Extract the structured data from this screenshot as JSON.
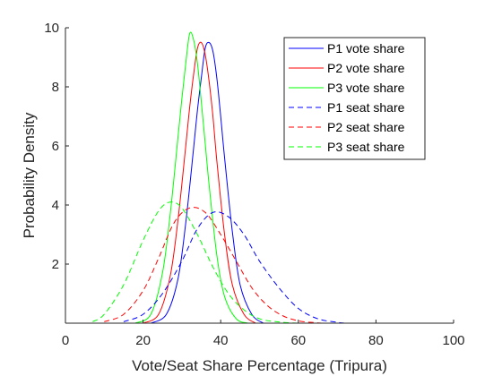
{
  "chart_data": {
    "type": "line",
    "xlabel": "Vote/Seat Share Percentage (Tripura)",
    "ylabel": "Probability Density",
    "xlim": [
      0,
      100
    ],
    "ylim": [
      0,
      10
    ],
    "x_ticks": [
      "0",
      "20",
      "40",
      "60",
      "80",
      "100"
    ],
    "y_ticks": [
      "2",
      "4",
      "6",
      "8",
      "10"
    ],
    "grid": false,
    "legend_position": "top-right",
    "series": [
      {
        "name": "P1 vote share",
        "color": "#0000ff",
        "dash": "solid",
        "x": [
          22,
          26,
          29,
          31,
          33,
          34,
          35,
          36,
          37,
          38,
          39,
          40,
          41,
          43,
          45,
          48,
          51
        ],
        "y": [
          0,
          0.3,
          1.5,
          3.4,
          5.9,
          7.2,
          8.3,
          9.3,
          9.5,
          9.2,
          8.3,
          7.0,
          5.6,
          3.1,
          1.3,
          0.3,
          0
        ]
      },
      {
        "name": "P2 vote share",
        "color": "#ff0000",
        "dash": "solid",
        "x": [
          20,
          24,
          27,
          29,
          31,
          32,
          33,
          34,
          35,
          36,
          37,
          38,
          39,
          41,
          43,
          46,
          49
        ],
        "y": [
          0,
          0.3,
          1.6,
          3.5,
          6.0,
          7.3,
          8.4,
          9.3,
          9.5,
          9.1,
          8.2,
          7.0,
          5.5,
          3.0,
          1.3,
          0.3,
          0
        ]
      },
      {
        "name": "P3 vote share",
        "color": "#00ff00",
        "dash": "solid",
        "x": [
          18,
          22,
          25,
          27,
          29,
          30,
          31,
          32,
          33,
          34,
          35,
          36,
          37,
          39,
          41,
          44,
          47
        ],
        "y": [
          0,
          0.3,
          1.7,
          3.7,
          6.3,
          7.6,
          8.8,
          9.8,
          9.6,
          8.8,
          7.5,
          6.1,
          4.7,
          2.3,
          0.9,
          0.15,
          0
        ]
      },
      {
        "name": "P1 seat share",
        "color": "#0000ff",
        "dash": "dashed",
        "x": [
          15,
          20,
          25,
          30,
          34,
          38,
          42,
          46,
          50,
          55,
          60,
          65,
          70,
          72
        ],
        "y": [
          0.05,
          0.3,
          1.0,
          2.1,
          3.2,
          3.75,
          3.6,
          3.0,
          2.1,
          1.2,
          0.5,
          0.15,
          0.03,
          0
        ]
      },
      {
        "name": "P2 seat share",
        "color": "#ff0000",
        "dash": "dashed",
        "x": [
          10,
          15,
          20,
          24,
          28,
          32,
          36,
          40,
          44,
          48,
          52,
          56,
          60,
          64,
          66
        ],
        "y": [
          0.05,
          0.3,
          1.1,
          2.2,
          3.4,
          3.9,
          3.75,
          3.0,
          2.1,
          1.2,
          0.6,
          0.25,
          0.08,
          0.02,
          0
        ]
      },
      {
        "name": "P3 seat share",
        "color": "#00ff00",
        "dash": "dashed",
        "x": [
          7,
          10,
          15,
          20,
          24,
          27,
          30,
          34,
          38,
          42,
          46,
          50,
          55,
          60
        ],
        "y": [
          0.05,
          0.3,
          1.3,
          2.8,
          3.8,
          4.1,
          3.9,
          3.0,
          1.9,
          1.0,
          0.45,
          0.15,
          0.04,
          0
        ]
      }
    ]
  }
}
